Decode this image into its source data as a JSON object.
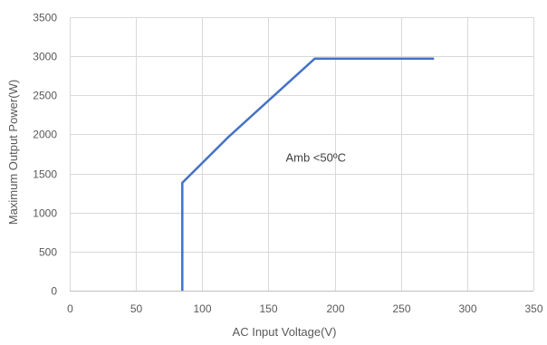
{
  "chart_data": {
    "type": "line",
    "title": "",
    "xlabel": "AC Input Voltage(V)",
    "ylabel": "Maximum Output Power(W)",
    "xlim": [
      0,
      350
    ],
    "ylim": [
      0,
      3500
    ],
    "x_ticks": [
      "0",
      "50",
      "100",
      "150",
      "200",
      "250",
      "300",
      "350"
    ],
    "y_ticks": [
      "0",
      "500",
      "1000",
      "1500",
      "2000",
      "2500",
      "3000",
      "3500"
    ],
    "grid": true,
    "legend": "none",
    "series": [
      {
        "color": "#4472c4",
        "points": [
          {
            "x": 85,
            "y": 0
          },
          {
            "x": 85,
            "y": 1380
          },
          {
            "x": 120,
            "y": 1970
          },
          {
            "x": 185,
            "y": 2970
          },
          {
            "x": 275,
            "y": 2970
          }
        ]
      }
    ],
    "annotations": [
      {
        "text": "Amb <50ºC",
        "x": 163,
        "y": 1700
      }
    ]
  }
}
